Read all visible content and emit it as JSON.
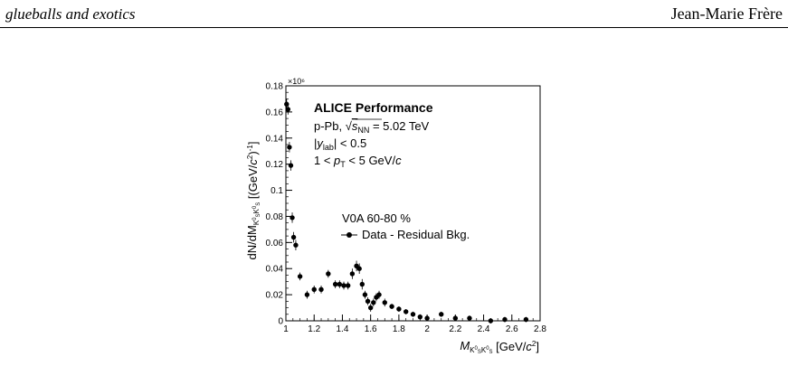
{
  "header": {
    "left": "glueballs and exotics",
    "right": "Jean-Marie Frère"
  },
  "figure": {
    "exponent_label": "×10⁶",
    "experiment": "ALICE Performance",
    "system": "p-Pb, ",
    "sqrt_s": "s",
    "sqrt_s_sub": "NN",
    "energy": " = 5.02 TeV",
    "rapidity": "|y",
    "rapidity_sub": "lab",
    "rapidity_cut": "| < 0.5",
    "pt_prefix": "1 < p",
    "pt_sub": "T",
    "pt_suffix": " < 5 GeV/c",
    "centrality": "V0A 60-80 %",
    "legend_entry": "Data - Residual Bkg."
  },
  "chart_data": {
    "type": "scatter",
    "title": "",
    "xlabel": "M_{K0sK0s} [GeV/c²]",
    "ylabel": "dN/dM_{K0sK0s} [(GeV/c²)⁻¹]",
    "xlim": [
      1.0,
      2.8
    ],
    "ylim": [
      0,
      0.18
    ],
    "x_ticks": [
      "1",
      "1.2",
      "1.4",
      "1.6",
      "1.8",
      "2",
      "2.2",
      "2.4",
      "2.6",
      "2.8"
    ],
    "y_ticks": [
      "0",
      "0.02",
      "0.04",
      "0.06",
      "0.08",
      "0.1",
      "0.12",
      "0.14",
      "0.16",
      "0.18"
    ],
    "legend_position": "middle-right",
    "series": [
      {
        "name": "Data - Residual Bkg.",
        "x": [
          1.005,
          1.015,
          1.025,
          1.035,
          1.045,
          1.055,
          1.07,
          1.1,
          1.15,
          1.2,
          1.25,
          1.3,
          1.35,
          1.38,
          1.41,
          1.44,
          1.47,
          1.5,
          1.52,
          1.54,
          1.56,
          1.58,
          1.6,
          1.62,
          1.64,
          1.66,
          1.7,
          1.75,
          1.8,
          1.85,
          1.9,
          1.95,
          2.0,
          2.1,
          2.2,
          2.3,
          2.45,
          2.55,
          2.7
        ],
        "y": [
          0.166,
          0.162,
          0.133,
          0.119,
          0.079,
          0.064,
          0.058,
          0.034,
          0.02,
          0.024,
          0.024,
          0.036,
          0.028,
          0.028,
          0.027,
          0.027,
          0.036,
          0.042,
          0.04,
          0.028,
          0.02,
          0.015,
          0.01,
          0.014,
          0.018,
          0.02,
          0.014,
          0.011,
          0.009,
          0.007,
          0.005,
          0.003,
          0.002,
          0.005,
          0.002,
          0.002,
          0.0,
          0.001,
          0.001
        ],
        "yerr": [
          0.004,
          0.004,
          0.004,
          0.004,
          0.004,
          0.004,
          0.004,
          0.003,
          0.003,
          0.003,
          0.003,
          0.003,
          0.003,
          0.003,
          0.003,
          0.003,
          0.004,
          0.004,
          0.004,
          0.004,
          0.003,
          0.003,
          0.003,
          0.003,
          0.003,
          0.003,
          0.003,
          0.002,
          0.002,
          0.002,
          0.002,
          0.002,
          0.002,
          0.002,
          0.002,
          0.002,
          0.002,
          0.002,
          0.002
        ]
      }
    ]
  }
}
